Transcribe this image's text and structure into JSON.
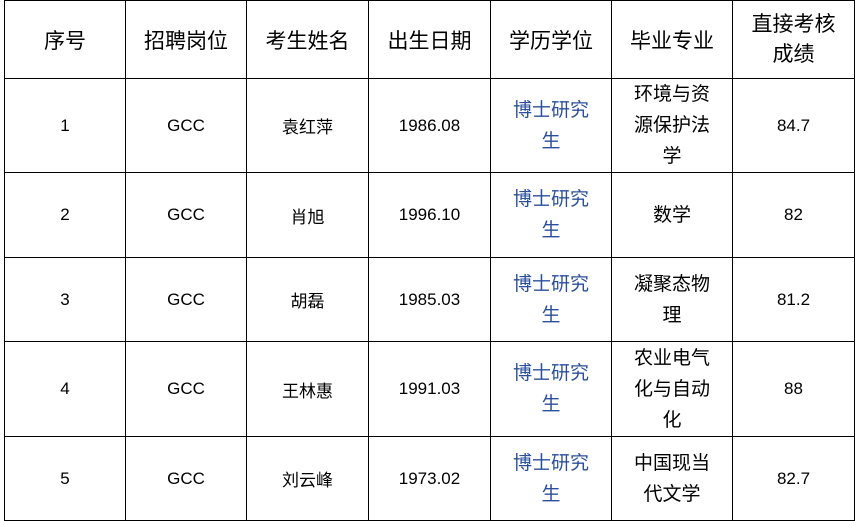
{
  "headers": [
    "序号",
    "招聘岗位",
    "考生姓名",
    "出生日期",
    "学历学位",
    "毕业专业",
    "直接考核成绩"
  ],
  "rows": [
    {
      "no": "1",
      "position": "GCC",
      "name": "袁红萍",
      "birth": "1986.08",
      "degree": "博士研究生",
      "major": "环境与资源保护法学",
      "score": "84.7"
    },
    {
      "no": "2",
      "position": "GCC",
      "name": "肖旭",
      "birth": "1996.10",
      "degree": "博士研究生",
      "major": "数学",
      "score": "82"
    },
    {
      "no": "3",
      "position": "GCC",
      "name": "胡磊",
      "birth": "1985.03",
      "degree": "博士研究生",
      "major": "凝聚态物理",
      "score": "81.2"
    },
    {
      "no": "4",
      "position": "GCC",
      "name": "王林惠",
      "birth": "1991.03",
      "degree": "博士研究生",
      "major": "农业电气化与自动化",
      "score": "88"
    },
    {
      "no": "5",
      "position": "GCC",
      "name": "刘云峰",
      "birth": "1973.02",
      "degree": "博士研究生",
      "major": "中国现当代文学",
      "score": "82.7"
    }
  ],
  "colors": {
    "degree_text": "#2a4f9c"
  }
}
